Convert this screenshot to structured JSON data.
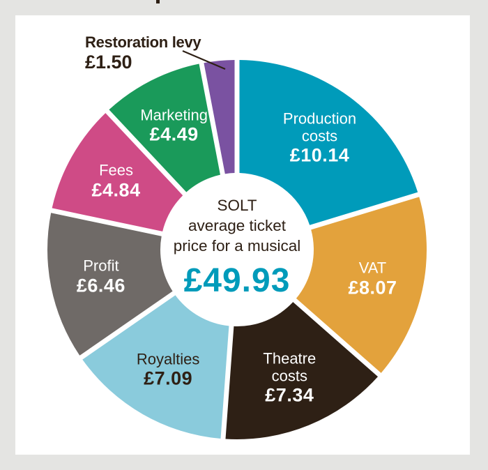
{
  "chart_data": {
    "type": "pie",
    "subtype": "donut",
    "title": "SOLT average ticket price for a musical",
    "total": 49.93,
    "total_label": "£49.93",
    "center_lines": [
      "SOLT",
      "average ticket",
      "price for a musical"
    ],
    "currency": "£",
    "start_angle_deg": -90,
    "direction": "clockwise",
    "segments": [
      {
        "name": "Production costs",
        "name_lines": [
          "Production",
          "costs"
        ],
        "value": 10.14,
        "value_label": "£10.14",
        "color": "#009bba",
        "text_color": "#ffffff"
      },
      {
        "name": "VAT",
        "name_lines": [
          "VAT"
        ],
        "value": 8.07,
        "value_label": "£8.07",
        "color": "#e3a23c",
        "text_color": "#ffffff"
      },
      {
        "name": "Theatre costs",
        "name_lines": [
          "Theatre",
          "costs"
        ],
        "value": 7.34,
        "value_label": "£7.34",
        "color": "#2e2015",
        "text_color": "#ffffff"
      },
      {
        "name": "Royalties",
        "name_lines": [
          "Royalties"
        ],
        "value": 7.09,
        "value_label": "£7.09",
        "color": "#8acbdc",
        "text_color": "#2e2015"
      },
      {
        "name": "Profit",
        "name_lines": [
          "Profit"
        ],
        "value": 6.46,
        "value_label": "£6.46",
        "color": "#6f6a67",
        "text_color": "#ffffff"
      },
      {
        "name": "Fees",
        "name_lines": [
          "Fees"
        ],
        "value": 4.84,
        "value_label": "£4.84",
        "color": "#cf4b86",
        "text_color": "#ffffff"
      },
      {
        "name": "Marketing",
        "name_lines": [
          "Marketing"
        ],
        "value": 4.49,
        "value_label": "£4.49",
        "color": "#1a9a5a",
        "text_color": "#ffffff"
      },
      {
        "name": "Restoration levy",
        "name_lines": [
          "Restoration levy"
        ],
        "value": 1.5,
        "value_label": "£1.50",
        "color": "#7a52a1",
        "text_color": "#2e2015",
        "external_label": true
      }
    ]
  },
  "colors": {
    "background": "#e4e4e2",
    "card": "#ffffff",
    "accent": "#009bba",
    "text_dark": "#2e2015"
  }
}
